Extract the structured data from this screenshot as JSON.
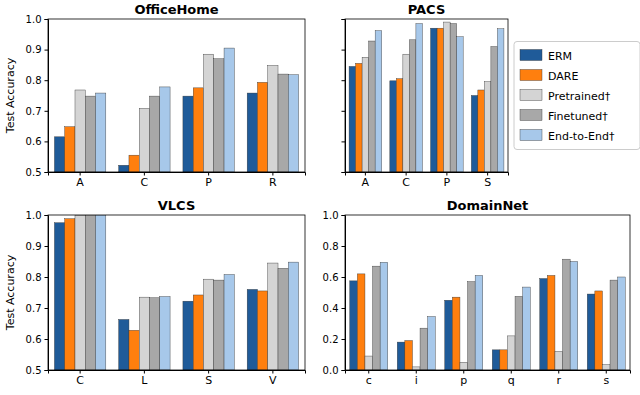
{
  "chart_data": [
    {
      "type": "bar",
      "title": "OfficeHome",
      "y_label": "Test Accuracy",
      "categories": [
        "A",
        "C",
        "P",
        "R"
      ],
      "series": [
        {
          "name": "ERM",
          "color": "#1f5b99",
          "values": [
            0.615,
            0.522,
            0.748,
            0.758
          ]
        },
        {
          "name": "DARE",
          "color": "#ff7f0e",
          "values": [
            0.648,
            0.555,
            0.775,
            0.793
          ]
        },
        {
          "name": "Pretrained†",
          "color": "#d4d4d4",
          "values": [
            0.768,
            0.708,
            0.885,
            0.848
          ]
        },
        {
          "name": "Finetuned†",
          "color": "#a8a8a8",
          "values": [
            0.748,
            0.748,
            0.87,
            0.82
          ]
        },
        {
          "name": "End-to-End†",
          "color": "#a7c8ea",
          "values": [
            0.758,
            0.778,
            0.905,
            0.818
          ]
        }
      ],
      "ylim": [
        0.5,
        1
      ],
      "yticks": [
        0.5,
        0.6,
        0.7,
        0.8,
        0.9,
        {
          "value": 1,
          "label": "1.0"
        }
      ],
      "grid": false
    },
    {
      "type": "bar",
      "title": "PACS",
      "categories": [
        "A",
        "C",
        "P",
        "S"
      ],
      "series": [
        {
          "name": "ERM",
          "color": "#1f5b99",
          "values": [
            0.845,
            0.798,
            0.97,
            0.75
          ]
        },
        {
          "name": "DARE",
          "color": "#ff7f0e",
          "values": [
            0.855,
            0.805,
            0.97,
            0.768
          ]
        },
        {
          "name": "Pretrained†",
          "color": "#d4d4d4",
          "values": [
            0.875,
            0.885,
            0.99,
            0.795
          ]
        },
        {
          "name": "Finetuned†",
          "color": "#a8a8a8",
          "values": [
            0.928,
            0.932,
            0.985,
            0.91
          ]
        },
        {
          "name": "End-to-End†",
          "color": "#a7c8ea",
          "values": [
            0.962,
            0.985,
            0.942,
            0.968
          ]
        }
      ],
      "ylim": [
        0.5,
        1
      ],
      "yticks": [
        0.5,
        0.6,
        0.7,
        0.8,
        0.9,
        1
      ],
      "grid": false,
      "tick_labels": "x",
      "legend": "right"
    },
    {
      "type": "bar",
      "title": "VLCS",
      "y_label": "Test Accuracy",
      "categories": [
        "C",
        "L",
        "S",
        "V"
      ],
      "series": [
        {
          "name": "ERM",
          "color": "#1f5b99",
          "values": [
            0.975,
            0.663,
            0.722,
            0.76
          ]
        },
        {
          "name": "DARE",
          "color": "#ff7f0e",
          "values": [
            0.988,
            0.628,
            0.742,
            0.755
          ]
        },
        {
          "name": "Pretrained†",
          "color": "#d4d4d4",
          "values": [
            0.998,
            0.735,
            0.793,
            0.845
          ]
        },
        {
          "name": "Finetuned†",
          "color": "#a8a8a8",
          "values": [
            0.998,
            0.733,
            0.79,
            0.828
          ]
        },
        {
          "name": "End-to-End†",
          "color": "#a7c8ea",
          "values": [
            1,
            0.737,
            0.808,
            0.848
          ]
        }
      ],
      "ylim": [
        0.5,
        1
      ],
      "yticks": [
        0.5,
        0.6,
        0.7,
        0.8,
        0.9,
        {
          "value": 1,
          "label": "1.0"
        }
      ],
      "grid": false
    },
    {
      "type": "bar",
      "title": "DomainNet",
      "categories": [
        "c",
        "i",
        "p",
        "q",
        "r",
        "s"
      ],
      "series": [
        {
          "name": "ERM",
          "color": "#1f5b99",
          "values": [
            0.575,
            0.18,
            0.45,
            0.13,
            0.59,
            0.49
          ]
        },
        {
          "name": "DARE",
          "color": "#ff7f0e",
          "values": [
            0.62,
            0.19,
            0.47,
            0.13,
            0.61,
            0.51
          ]
        },
        {
          "name": "Pretrained†",
          "color": "#d4d4d4",
          "values": [
            0.09,
            0.02,
            0.05,
            0.22,
            0.12,
            0.035
          ]
        },
        {
          "name": "Finetuned†",
          "color": "#a8a8a8",
          "values": [
            0.67,
            0.27,
            0.57,
            0.475,
            0.715,
            0.58
          ]
        },
        {
          "name": "End-to-End†",
          "color": "#a7c8ea",
          "values": [
            0.695,
            0.345,
            0.61,
            0.535,
            0.7,
            0.6
          ]
        }
      ],
      "ylim": [
        0,
        1
      ],
      "yticks": [
        {
          "value": 0,
          "label": "0.0"
        },
        0.2,
        0.4,
        0.6,
        0.8,
        {
          "value": 1,
          "label": "1.0"
        }
      ],
      "grid": false
    }
  ]
}
